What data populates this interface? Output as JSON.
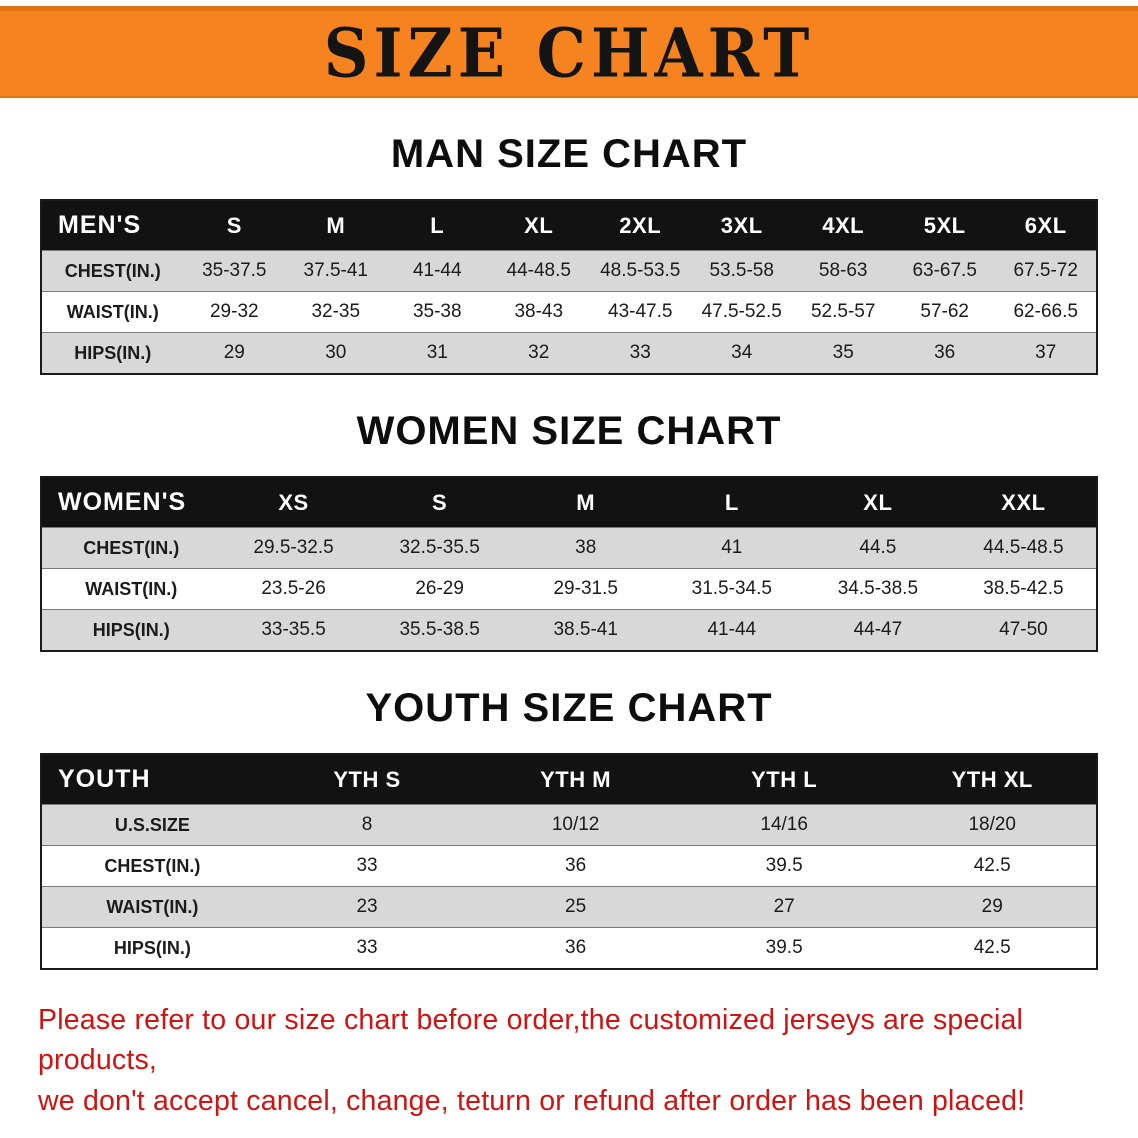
{
  "banner": {
    "title": "SIZE CHART",
    "bg_color": "#f5831f",
    "text_color": "#141414"
  },
  "sections": [
    {
      "id": "men",
      "heading": "MAN SIZE CHART",
      "table": {
        "header": [
          "MEN'S",
          "S",
          "M",
          "L",
          "XL",
          "2XL",
          "3XL",
          "4XL",
          "5XL",
          "6XL"
        ],
        "rows": [
          {
            "key": "chest",
            "label": "CHEST(IN.)",
            "values": [
              "35-37.5",
              "37.5-41",
              "41-44",
              "44-48.5",
              "48.5-53.5",
              "53.5-58",
              "58-63",
              "63-67.5",
              "67.5-72"
            ]
          },
          {
            "key": "waist",
            "label": "WAIST(IN.)",
            "values": [
              "29-32",
              "32-35",
              "35-38",
              "38-43",
              "43-47.5",
              "47.5-52.5",
              "52.5-57",
              "57-62",
              "62-66.5"
            ]
          },
          {
            "key": "hips",
            "label": "HIPS(IN.)",
            "values": [
              "29",
              "30",
              "31",
              "32",
              "33",
              "34",
              "35",
              "36",
              "37"
            ]
          }
        ]
      }
    },
    {
      "id": "women",
      "heading": "WOMEN SIZE CHART",
      "table": {
        "header": [
          "WOMEN'S",
          "XS",
          "S",
          "M",
          "L",
          "XL",
          "XXL"
        ],
        "rows": [
          {
            "key": "chest",
            "label": "CHEST(IN.)",
            "values": [
              "29.5-32.5",
              "32.5-35.5",
              "38",
              "41",
              "44.5",
              "44.5-48.5"
            ]
          },
          {
            "key": "waist",
            "label": "WAIST(IN.)",
            "values": [
              "23.5-26",
              "26-29",
              "29-31.5",
              "31.5-34.5",
              "34.5-38.5",
              "38.5-42.5"
            ]
          },
          {
            "key": "hips",
            "label": "HIPS(IN.)",
            "values": [
              "33-35.5",
              "35.5-38.5",
              "38.5-41",
              "41-44",
              "44-47",
              "47-50"
            ]
          }
        ]
      }
    },
    {
      "id": "youth",
      "heading": "YOUTH SIZE CHART",
      "table": {
        "header": [
          "YOUTH",
          "YTH S",
          "YTH M",
          "YTH L",
          "YTH XL"
        ],
        "rows": [
          {
            "key": "ussize",
            "label": "U.S.SIZE",
            "values": [
              "8",
              "10/12",
              "14/16",
              "18/20"
            ]
          },
          {
            "key": "chest",
            "label": "CHEST(IN.)",
            "values": [
              "33",
              "36",
              "39.5",
              "42.5"
            ]
          },
          {
            "key": "waist",
            "label": "WAIST(IN.)",
            "values": [
              "23",
              "25",
              "27",
              "29"
            ]
          },
          {
            "key": "hips",
            "label": "HIPS(IN.)",
            "values": [
              "33",
              "36",
              "39.5",
              "42.5"
            ]
          }
        ]
      }
    }
  ],
  "footer": {
    "line1": "Please refer to our size chart before order,the customized jerseys are special products,",
    "line2": "we don't accept cancel, change, teturn or refund after order has been placed!"
  }
}
